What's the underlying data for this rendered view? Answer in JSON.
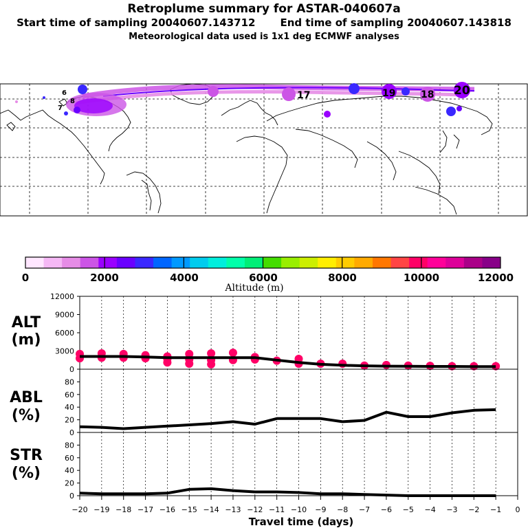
{
  "header": {
    "title": "Retroplume summary for ASTAR-040607a",
    "start_label": "Start time of sampling 20040607.143712",
    "end_label": "End time of sampling 20040607.143818",
    "subtitle": "Meteorological data used is 1x1 deg ECMWF analyses"
  },
  "map": {
    "plume_day_labels": [
      "6",
      "7",
      "8",
      "17",
      "18",
      "19",
      "20"
    ]
  },
  "colorbar": {
    "ticks": [
      "0",
      "2000",
      "4000",
      "6000",
      "8000",
      "10000",
      "12000"
    ],
    "label": "Altitude (m)",
    "colors": [
      "#ffe6ff",
      "#f5b8f5",
      "#e68ce6",
      "#cc55e6",
      "#9a00ff",
      "#6a00ff",
      "#3a28ff",
      "#0066ff",
      "#0099ff",
      "#00ccee",
      "#00eedd",
      "#00ffaa",
      "#00ee77",
      "#44dd00",
      "#99ee00",
      "#ccee00",
      "#ffee00",
      "#ffcc00",
      "#ffaa00",
      "#ff7700",
      "#ff4444",
      "#ff0066",
      "#ff0099",
      "#dd0099",
      "#aa0088",
      "#880088"
    ]
  },
  "chart_data": [
    {
      "type": "line",
      "panel": "ALT",
      "ylabel_line1": "ALT",
      "ylabel_line2": "(m)",
      "x": [
        -20,
        -19,
        -18,
        -17,
        -16,
        -15,
        -14,
        -13,
        -12,
        -11,
        -10,
        -9,
        -8,
        -7,
        -6,
        -5,
        -4,
        -3,
        -2,
        -1
      ],
      "values": [
        2100,
        2100,
        2100,
        2000,
        1900,
        1900,
        1900,
        1900,
        1900,
        1500,
        1100,
        800,
        650,
        550,
        500,
        480,
        450,
        450,
        420,
        420
      ],
      "scatter_points": [
        {
          "x": -20,
          "y": 2500
        },
        {
          "x": -20,
          "y": 1800
        },
        {
          "x": -19,
          "y": 2600
        },
        {
          "x": -19,
          "y": 1900
        },
        {
          "x": -18,
          "y": 2500
        },
        {
          "x": -18,
          "y": 1900
        },
        {
          "x": -17,
          "y": 2300
        },
        {
          "x": -17,
          "y": 1800
        },
        {
          "x": -16,
          "y": 2100
        },
        {
          "x": -16,
          "y": 1700
        },
        {
          "x": -16,
          "y": 1100
        },
        {
          "x": -15,
          "y": 2500
        },
        {
          "x": -15,
          "y": 1600
        },
        {
          "x": -15,
          "y": 900
        },
        {
          "x": -14,
          "y": 2600
        },
        {
          "x": -14,
          "y": 1500
        },
        {
          "x": -14,
          "y": 800
        },
        {
          "x": -13,
          "y": 2700
        },
        {
          "x": -13,
          "y": 1500
        },
        {
          "x": -12,
          "y": 2000
        },
        {
          "x": -12,
          "y": 1600
        },
        {
          "x": -11,
          "y": 1400
        },
        {
          "x": -10,
          "y": 1700
        },
        {
          "x": -10,
          "y": 900
        },
        {
          "x": -9,
          "y": 900
        },
        {
          "x": -8,
          "y": 900
        },
        {
          "x": -7,
          "y": 600
        },
        {
          "x": -6,
          "y": 700
        },
        {
          "x": -5,
          "y": 600
        },
        {
          "x": -4,
          "y": 550
        },
        {
          "x": -3,
          "y": 500
        },
        {
          "x": -2,
          "y": 500
        },
        {
          "x": -1,
          "y": 500
        }
      ],
      "scatter_color": "#ff0066",
      "ylim": [
        0,
        12000
      ],
      "yticks": [
        "0",
        "3000",
        "6000",
        "9000",
        "12000"
      ],
      "ytick_values": [
        0,
        3000,
        6000,
        9000,
        12000
      ]
    },
    {
      "type": "line",
      "panel": "ABL",
      "ylabel_line1": "ABL",
      "ylabel_line2": "(%)",
      "x": [
        -20,
        -19,
        -18,
        -17,
        -16,
        -15,
        -14,
        -13,
        -12,
        -11,
        -10,
        -9,
        -8,
        -7,
        -6,
        -5,
        -4,
        -3,
        -2,
        -1
      ],
      "values": [
        9,
        8,
        6,
        8,
        10,
        12,
        14,
        17,
        13,
        22,
        22,
        22,
        17,
        19,
        32,
        25,
        25,
        31,
        35,
        36
      ],
      "ylim": [
        0,
        100
      ],
      "yticks": [
        "0",
        "20",
        "40",
        "60",
        "80"
      ],
      "ytick_values": [
        0,
        20,
        40,
        60,
        80
      ]
    },
    {
      "type": "line",
      "panel": "STR",
      "ylabel_line1": "STR",
      "ylabel_line2": "(%)",
      "x": [
        -20,
        -19,
        -18,
        -17,
        -16,
        -15,
        -14,
        -13,
        -12,
        -11,
        -10,
        -9,
        -8,
        -7,
        -6,
        -5,
        -4,
        -3,
        -2,
        -1
      ],
      "values": [
        4,
        3,
        3,
        3,
        4,
        10,
        11,
        8,
        6,
        6,
        5,
        3,
        3,
        2,
        1,
        0,
        0,
        0,
        0,
        0
      ],
      "ylim": [
        0,
        100
      ],
      "yticks": [
        "0",
        "20",
        "40",
        "60",
        "80"
      ],
      "ytick_values": [
        0,
        20,
        40,
        60,
        80
      ]
    }
  ],
  "xaxis": {
    "ticks": [
      "−20",
      "−19",
      "−18",
      "−17",
      "−16",
      "−15",
      "−14",
      "−13",
      "−12",
      "−11",
      "−10",
      "−9",
      "−8",
      "−7",
      "−6",
      "−5",
      "−4",
      "−3",
      "−2",
      "−1",
      "0"
    ],
    "tick_values": [
      -20,
      -19,
      -18,
      -17,
      -16,
      -15,
      -14,
      -13,
      -12,
      -11,
      -10,
      -9,
      -8,
      -7,
      -6,
      -5,
      -4,
      -3,
      -2,
      -1,
      0
    ],
    "label": "Travel time (days)"
  }
}
